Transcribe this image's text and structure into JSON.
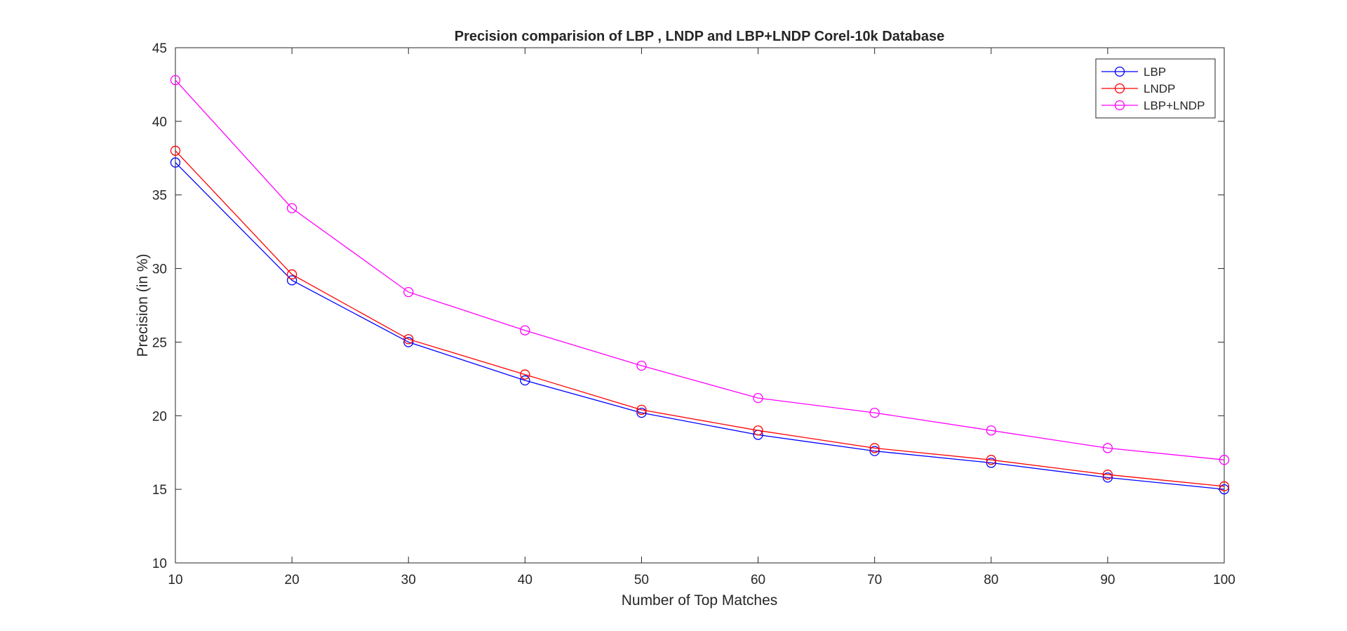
{
  "chart_data": {
    "type": "line",
    "title": "Precision comparision of LBP , LNDP and LBP+LNDP Corel-10k Database",
    "xlabel": "Number of Top Matches",
    "ylabel": "Precision (in %)",
    "xlim": [
      10,
      100
    ],
    "ylim": [
      10,
      45
    ],
    "x": [
      10,
      20,
      30,
      40,
      50,
      60,
      70,
      80,
      90,
      100
    ],
    "xticks": [
      "10",
      "20",
      "30",
      "40",
      "50",
      "60",
      "70",
      "80",
      "90",
      "100"
    ],
    "yticks": [
      "10",
      "15",
      "20",
      "25",
      "30",
      "35",
      "40",
      "45"
    ],
    "grid": false,
    "legend_position": "top-right",
    "marker": "circle",
    "series": [
      {
        "name": "LBP",
        "color": "#0000ff",
        "values": [
          37.2,
          29.2,
          25.0,
          22.4,
          20.2,
          18.7,
          17.6,
          16.8,
          15.8,
          15.0
        ]
      },
      {
        "name": "LNDP",
        "color": "#ff0000",
        "values": [
          38.0,
          29.6,
          25.2,
          22.8,
          20.4,
          19.0,
          17.8,
          17.0,
          16.0,
          15.2
        ]
      },
      {
        "name": "LBP+LNDP",
        "color": "#ff00ff",
        "values": [
          42.8,
          34.1,
          28.4,
          25.8,
          23.4,
          21.2,
          20.2,
          19.0,
          17.8,
          17.0
        ]
      }
    ]
  }
}
